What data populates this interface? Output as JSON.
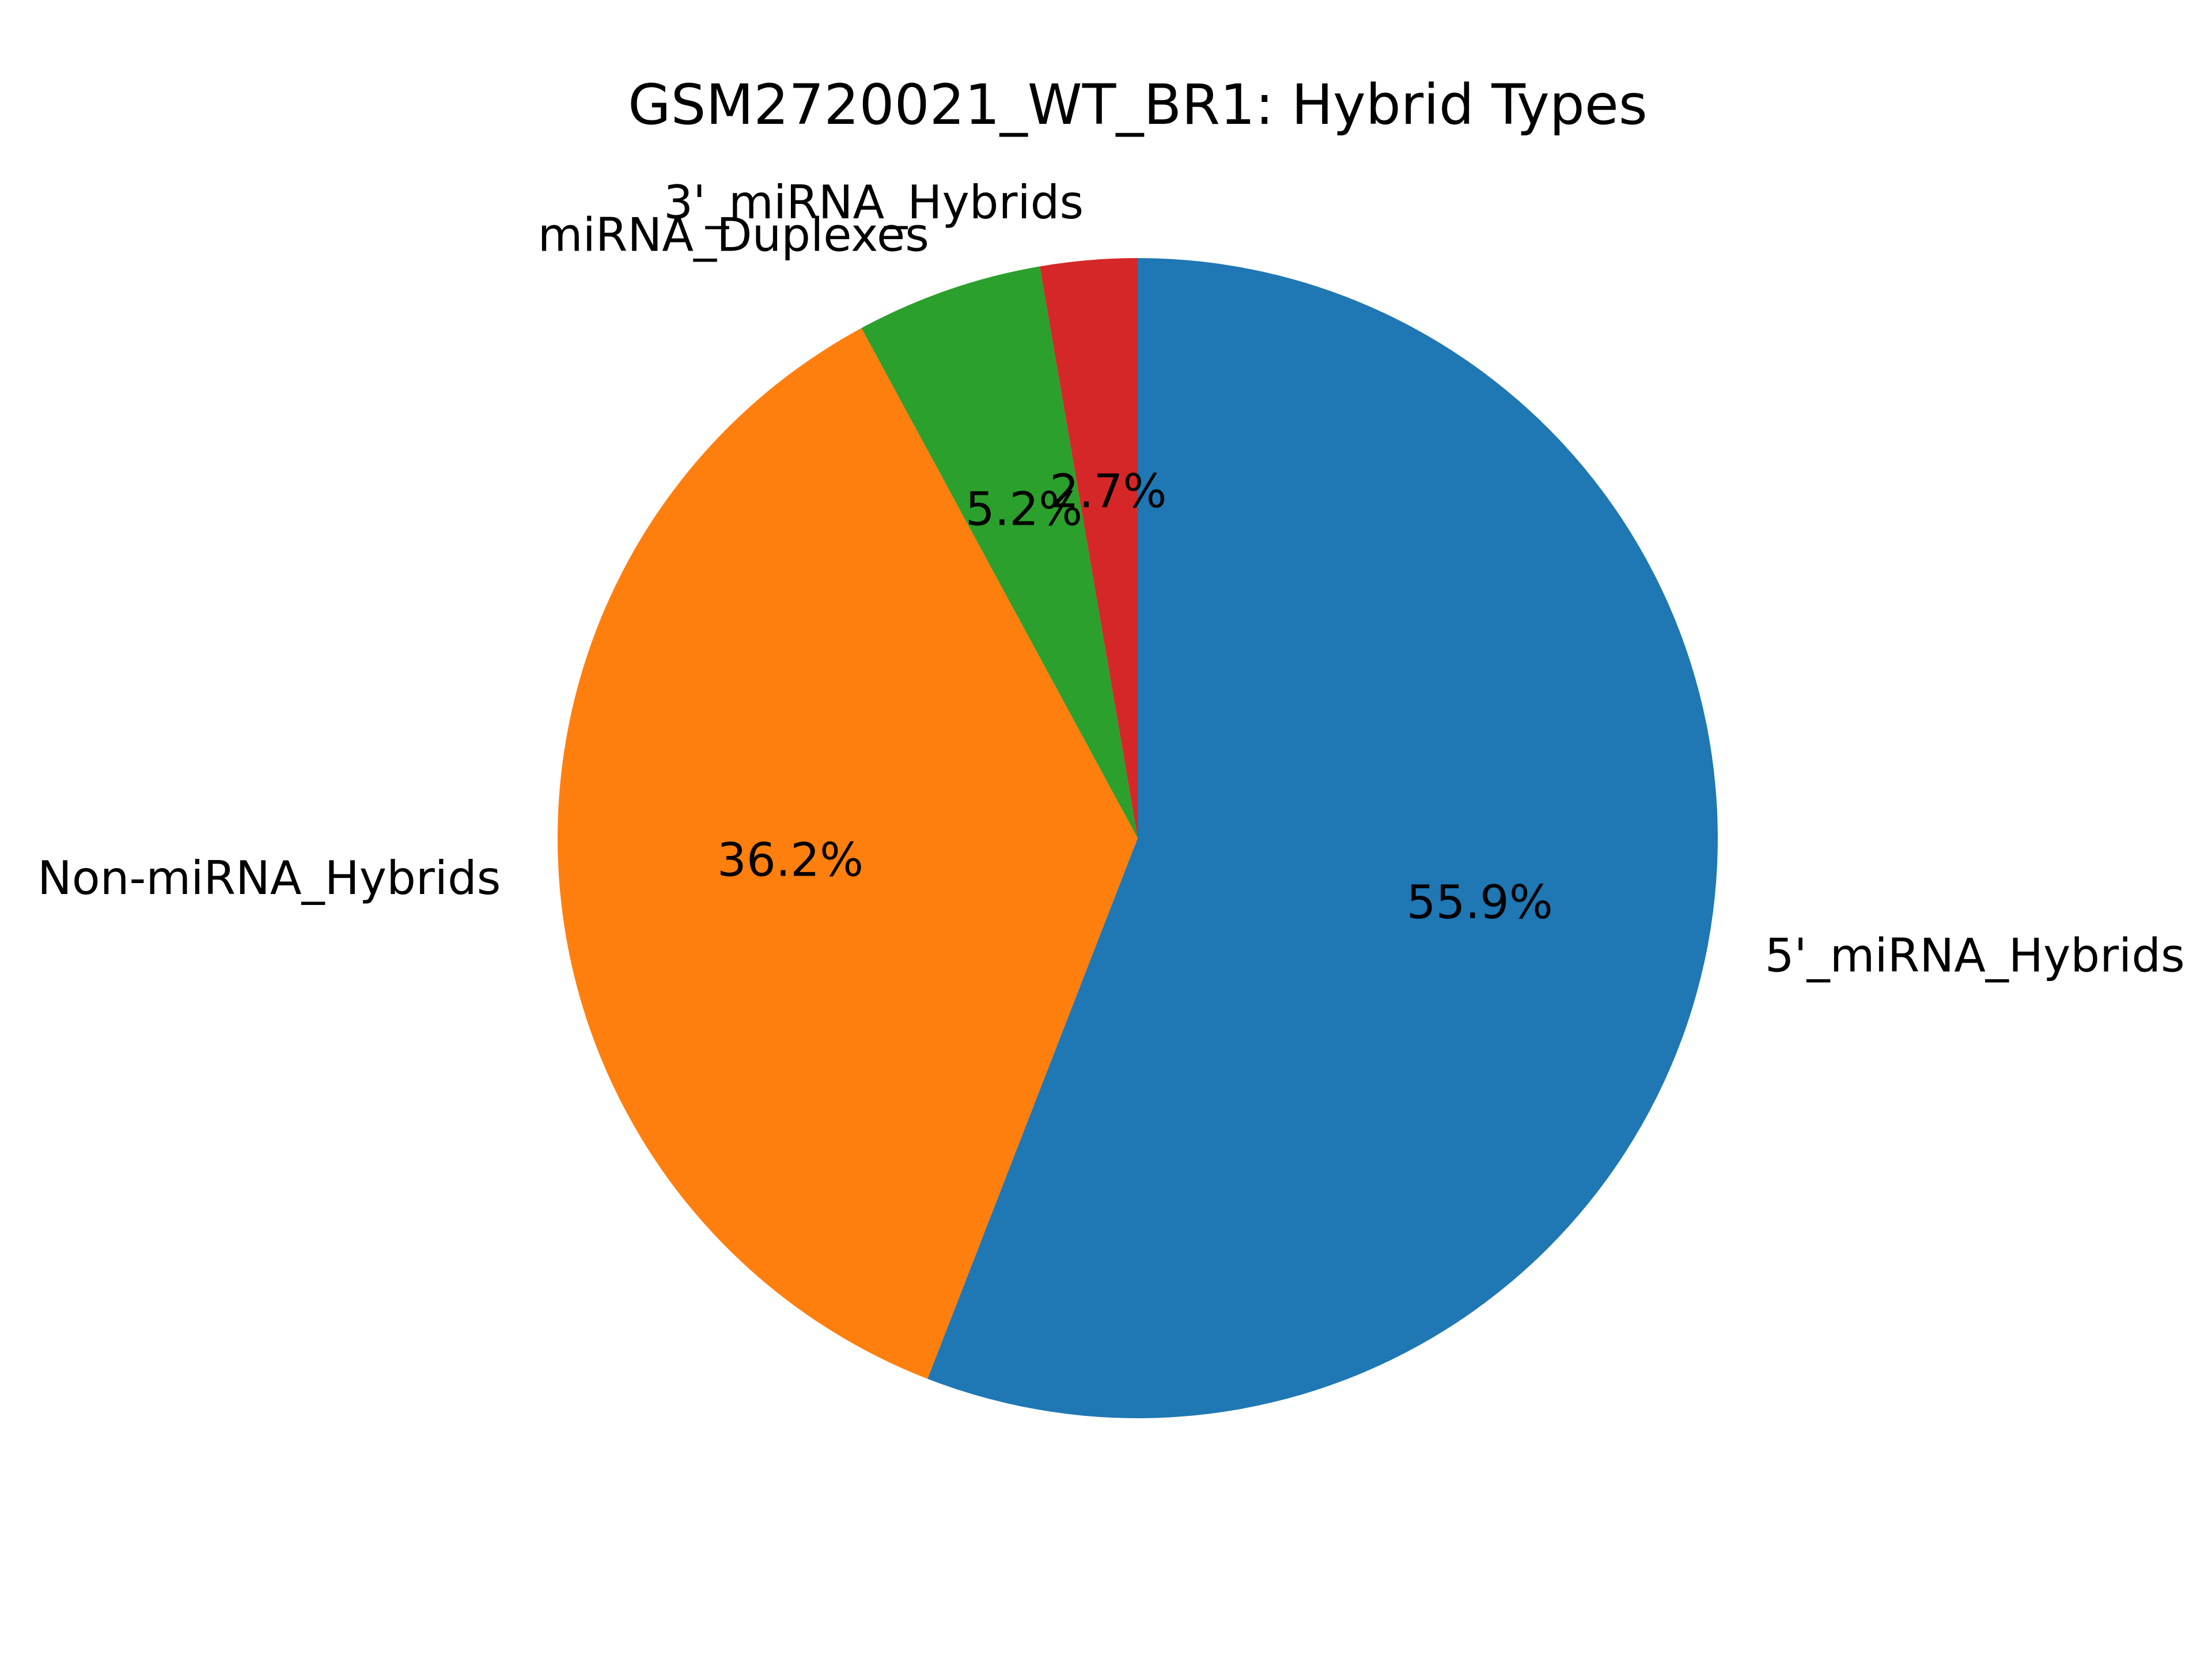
{
  "chart_data": {
    "type": "pie",
    "title": "GSM2720021_WT_BR1: Hybrid Types",
    "start_angle_deg": 90,
    "direction": "clockwise",
    "slices": [
      {
        "label": "5'_miRNA_Hybrids",
        "value": 55.9,
        "pct_label": "55.9%",
        "color": "#1f77b4"
      },
      {
        "label": "Non-miRNA_Hybrids",
        "value": 36.2,
        "pct_label": "36.2%",
        "color": "#ff7f0e"
      },
      {
        "label": "miRNA_Duplexes",
        "value": 5.2,
        "pct_label": "5.2%",
        "color": "#2ca02c"
      },
      {
        "label": "3'_miRNA_Hybrids",
        "value": 2.7,
        "pct_label": "2.7%",
        "color": "#d62728"
      }
    ]
  }
}
